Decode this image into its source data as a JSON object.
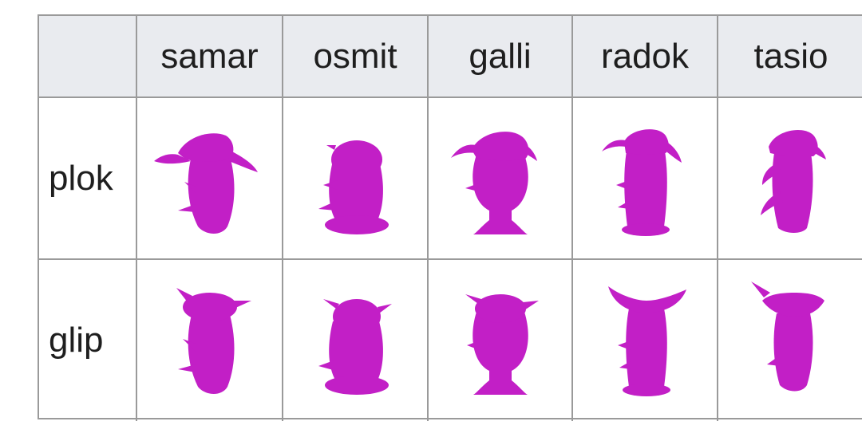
{
  "table": {
    "columns": [
      "samar",
      "osmit",
      "galli",
      "radok",
      "tasio"
    ],
    "rows": [
      "plok",
      "glip"
    ]
  },
  "objects": {
    "color": "#c21fc6",
    "plok": {
      "samar": {
        "body": "vase",
        "top": "cap-curled",
        "parts": "side-spikes"
      },
      "osmit": {
        "body": "blob",
        "top": "cap-round",
        "parts": "horn-base"
      },
      "galli": {
        "body": "bell",
        "top": "cap-curled",
        "parts": "flared-base"
      },
      "radok": {
        "body": "column",
        "top": "cap-curled",
        "parts": "side-spikes"
      },
      "tasio": {
        "body": "vase",
        "top": "cap-spiral",
        "parts": "side-spikes"
      }
    },
    "glip": {
      "samar": {
        "body": "vase",
        "top": "horned-cap",
        "parts": "side-spikes"
      },
      "osmit": {
        "body": "blob",
        "top": "horned-cap",
        "parts": "horn-base"
      },
      "galli": {
        "body": "bell",
        "top": "horned-cap",
        "parts": "flared-base"
      },
      "radok": {
        "body": "column",
        "top": "wing-cap",
        "parts": "side-spikes"
      },
      "tasio": {
        "body": "vase",
        "top": "bowl-cap",
        "parts": "side-spikes"
      }
    }
  }
}
